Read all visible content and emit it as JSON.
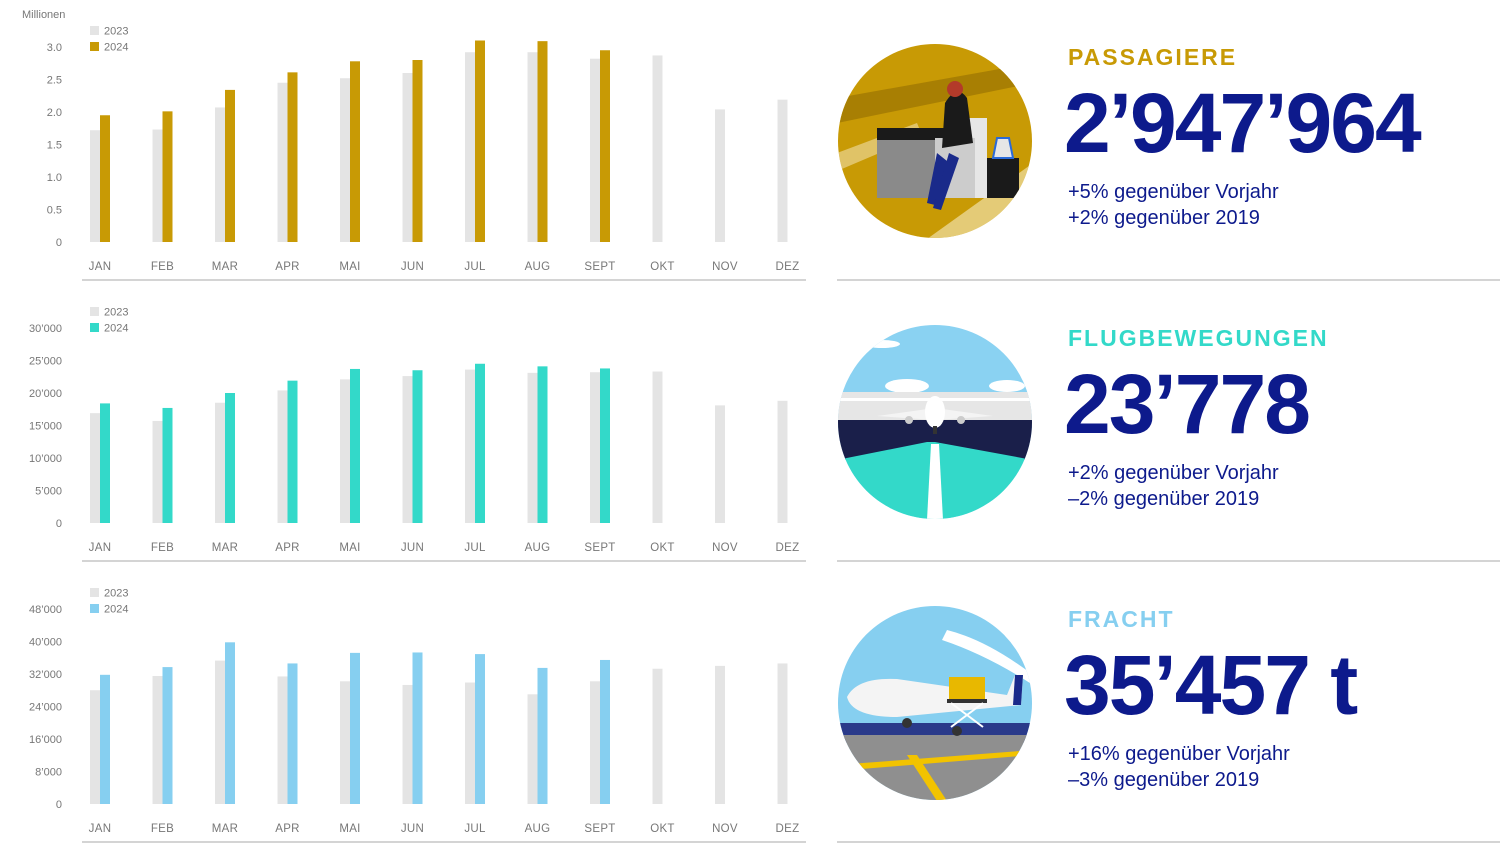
{
  "colors": {
    "prev_year_bar": "#e4e4e4",
    "kpi_value": "#0d1a8c",
    "passagiere": "#c89a05",
    "flugbewegungen": "#33d9c9",
    "fracht": "#86cff0"
  },
  "panels": [
    {
      "label": "PASSAGIERE",
      "value": "2’947’964",
      "deltas": [
        "+5% gegenüber Vorjahr",
        "+2% gegenüber 2019"
      ],
      "icon": "passenger-lounge-illustration",
      "accent": "#c89a05",
      "chart_data": {
        "type": "bar",
        "title": "",
        "unit_label": "Millionen",
        "categories": [
          "JAN",
          "FEB",
          "MAR",
          "APR",
          "MAI",
          "JUN",
          "JUL",
          "AUG",
          "SEPT",
          "OKT",
          "NOV",
          "DEZ"
        ],
        "series": [
          {
            "name": "2023",
            "values": [
              1.72,
              1.73,
              2.07,
              2.45,
              2.52,
              2.6,
              2.92,
              2.92,
              2.82,
              2.87,
              2.04,
              2.19
            ]
          },
          {
            "name": "2024",
            "values": [
              1.95,
              2.01,
              2.34,
              2.61,
              2.78,
              2.8,
              3.1,
              3.09,
              2.95,
              null,
              null,
              null
            ]
          }
        ],
        "ylim": [
          0,
          3.0
        ],
        "yticks": [
          0,
          0.5,
          1.0,
          1.5,
          2.0,
          2.5,
          3.0
        ],
        "ytick_labels": [
          "0",
          "0.5",
          "1.0",
          "1.5",
          "2.0",
          "2.5",
          "3.0"
        ],
        "legend": "top-left",
        "grid": false
      }
    },
    {
      "label": "FLUGBEWEGUNGEN",
      "value": "23’778",
      "deltas": [
        "+2% gegenüber Vorjahr",
        "–2% gegenüber 2019"
      ],
      "icon": "airplane-runway-illustration",
      "accent": "#33d9c9",
      "chart_data": {
        "type": "bar",
        "title": "",
        "categories": [
          "JAN",
          "FEB",
          "MAR",
          "APR",
          "MAI",
          "JUN",
          "JUL",
          "AUG",
          "SEPT",
          "OKT",
          "NOV",
          "DEZ"
        ],
        "series": [
          {
            "name": "2023",
            "values": [
              16900,
              15700,
              18500,
              20400,
              22100,
              22600,
              23600,
              23100,
              23200,
              23300,
              18100,
              18800
            ]
          },
          {
            "name": "2024",
            "values": [
              18400,
              17700,
              20000,
              21900,
              23700,
              23500,
              24500,
              24100,
              23778,
              null,
              null,
              null
            ]
          }
        ],
        "ylim": [
          0,
          30000
        ],
        "yticks": [
          0,
          5000,
          10000,
          15000,
          20000,
          25000,
          30000
        ],
        "ytick_labels": [
          "0",
          "5’000",
          "10’000",
          "15’000",
          "20’000",
          "25’000",
          "30’000"
        ],
        "legend": "top-left",
        "grid": false
      }
    },
    {
      "label": "FRACHT",
      "value": "35’457 t",
      "deltas": [
        "+16% gegenüber Vorjahr",
        "–3% gegenüber 2019"
      ],
      "icon": "cargo-plane-illustration",
      "accent": "#86cff0",
      "chart_data": {
        "type": "bar",
        "title": "",
        "categories": [
          "JAN",
          "FEB",
          "MAR",
          "APR",
          "MAI",
          "JUN",
          "JUL",
          "AUG",
          "SEPT",
          "OKT",
          "NOV",
          "DEZ"
        ],
        "series": [
          {
            "name": "2023",
            "values": [
              28000,
              31500,
              35300,
              31400,
              30200,
              29300,
              29900,
              27000,
              30200,
              33300,
              34000,
              34600
            ]
          },
          {
            "name": "2024",
            "values": [
              31800,
              33700,
              39800,
              34600,
              37200,
              37300,
              36900,
              33500,
              35457,
              null,
              null,
              null
            ]
          }
        ],
        "ylim": [
          0,
          48000
        ],
        "yticks": [
          0,
          8000,
          16000,
          24000,
          32000,
          40000,
          48000
        ],
        "ytick_labels": [
          "0",
          "8’000",
          "16’000",
          "24’000",
          "32’000",
          "40’000",
          "48’000"
        ],
        "legend": "top-left",
        "grid": false
      }
    }
  ]
}
